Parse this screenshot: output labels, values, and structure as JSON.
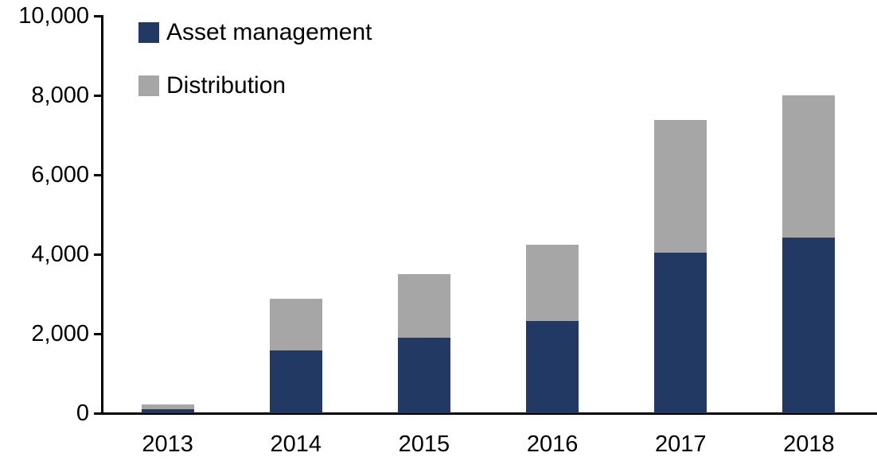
{
  "chart_data": {
    "type": "bar",
    "stacked": true,
    "title": "",
    "xlabel": "",
    "ylabel": "",
    "categories": [
      "2013",
      "2014",
      "2015",
      "2016",
      "2017",
      "2018"
    ],
    "series": [
      {
        "name": "Asset management",
        "color": "#223A63",
        "values": [
          100,
          1580,
          1900,
          2320,
          4050,
          4420
        ]
      },
      {
        "name": "Distribution",
        "color": "#A6A6A6",
        "values": [
          120,
          1300,
          1600,
          1930,
          3330,
          3580
        ]
      }
    ],
    "totals": [
      220,
      2880,
      3500,
      4250,
      7380,
      8000
    ],
    "ylim": [
      0,
      10000
    ],
    "ytick_step": 2000,
    "ytick_labels": [
      "0",
      "2,000",
      "4,000",
      "6,000",
      "8,000",
      "10,000"
    ],
    "grid": false,
    "legend_position": "top-left",
    "axis_color": "#000000",
    "background_color": "#FFFFFF"
  }
}
